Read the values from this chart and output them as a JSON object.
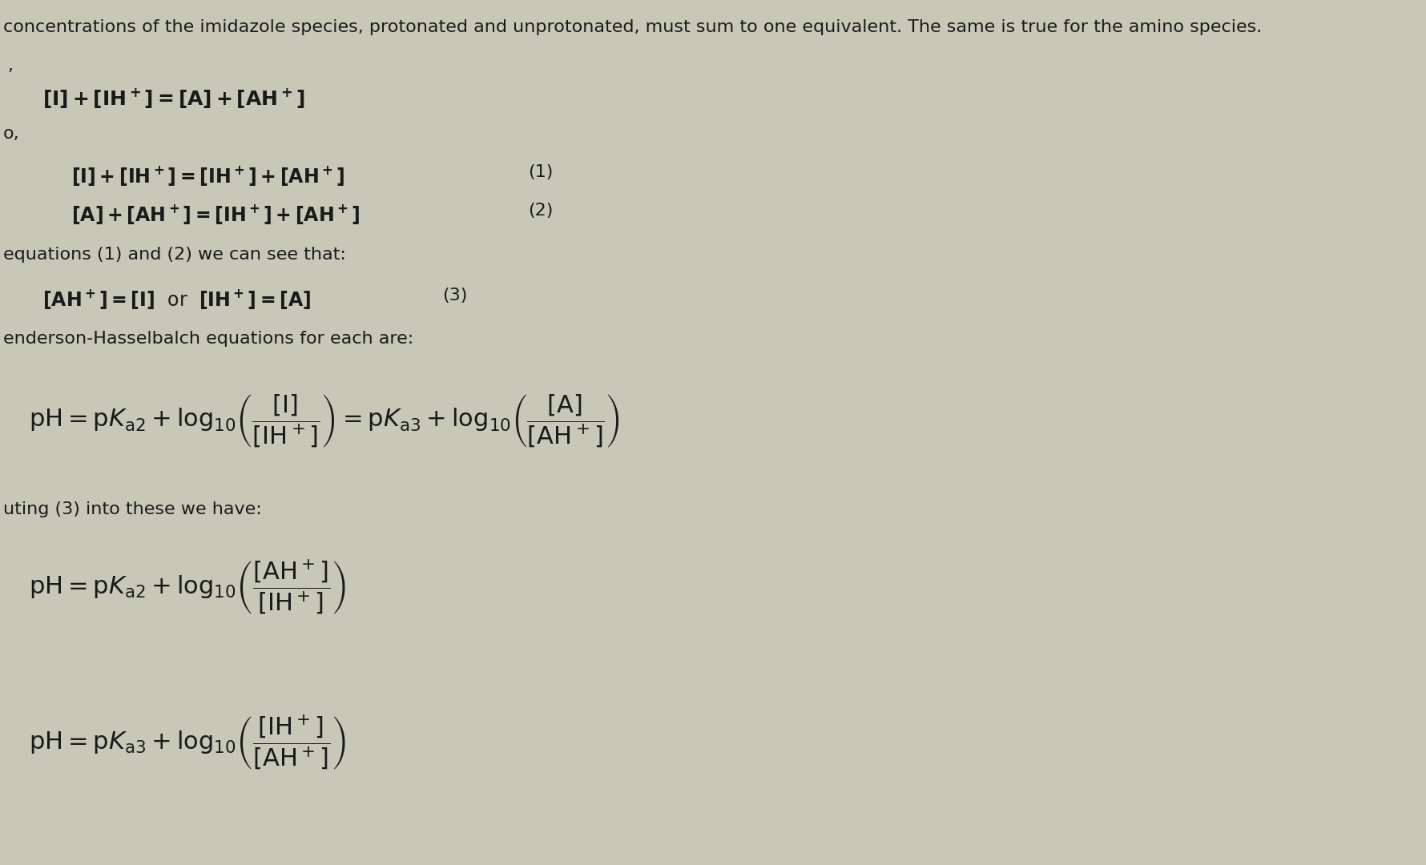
{
  "background_color": "#c8c8b8",
  "text_color": "#1a1a1a",
  "fig_width": 17.81,
  "fig_height": 10.8,
  "dpi": 100,
  "top_text": "concentrations of the imidazole species, protonated and unprotonated, must sum to one equivalent. The same is true for the amino species.",
  "label_comma": ",",
  "label_o": "o,",
  "text_eq12": "equations (1) and (2) we can see that:",
  "text_hh": "enderson-Hasselbalch equations for each are:",
  "text_sub": "uting (3) into these we have:"
}
